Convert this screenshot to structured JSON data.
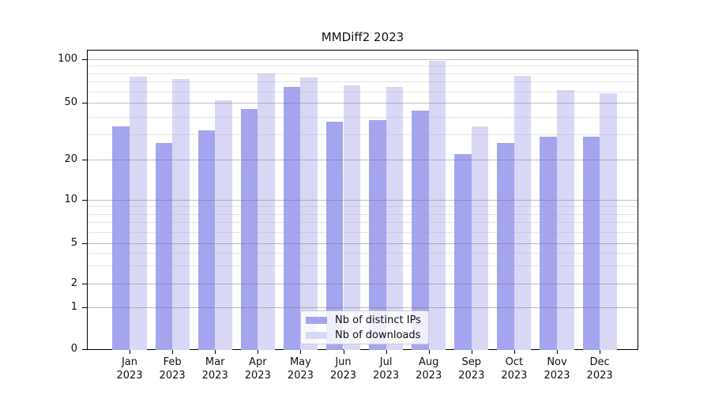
{
  "chart_data": {
    "type": "bar",
    "title": "MMDiff2 2023",
    "categories": [
      "Jan 2023",
      "Feb 2023",
      "Mar 2023",
      "Apr 2023",
      "May 2023",
      "Jun 2023",
      "Jul 2023",
      "Aug 2023",
      "Sep 2023",
      "Oct 2023",
      "Nov 2023",
      "Dec 2023"
    ],
    "series": [
      {
        "name": "Nb of distinct IPs",
        "color": "#a5a5ef",
        "values": [
          34,
          26,
          32,
          45,
          64,
          37,
          38,
          44,
          22,
          26,
          29,
          29
        ]
      },
      {
        "name": "Nb of downloads",
        "color": "#d8d8f6",
        "values": [
          76,
          73,
          52,
          80,
          75,
          66,
          64,
          97,
          34,
          77,
          61,
          58
        ]
      }
    ],
    "xlabel": "",
    "ylabel": "",
    "yscale": "log-like with 0 baseline",
    "yticks": [
      100,
      50,
      20,
      10,
      5,
      2,
      1,
      0
    ],
    "minor_gridlines": [
      90,
      80,
      70,
      60,
      40,
      30,
      9,
      8,
      7,
      6,
      4,
      3
    ],
    "ylim": [
      0,
      110
    ],
    "grid": "horizontal major + minor",
    "legend_position": "lower center"
  },
  "legend": {
    "items": [
      {
        "label": "Nb of distinct IPs",
        "color": "#a5a5ef"
      },
      {
        "label": "Nb of downloads",
        "color": "#d8d8f6"
      }
    ]
  }
}
